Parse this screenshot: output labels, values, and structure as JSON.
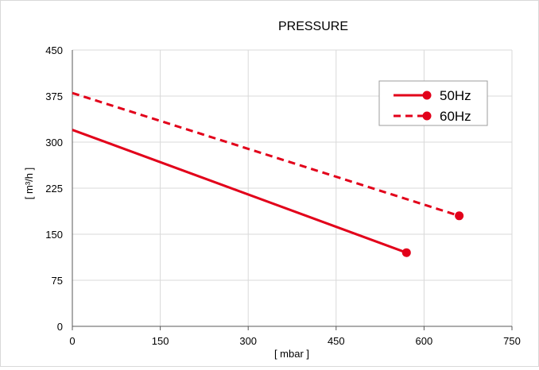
{
  "chart_data": {
    "type": "line",
    "title": "PRESSURE",
    "xlabel": "[ mbar ]",
    "ylabel": "[ m³/h ]",
    "xlim": [
      0,
      750
    ],
    "ylim": [
      0,
      450
    ],
    "xticks": [
      0,
      150,
      300,
      450,
      600,
      750
    ],
    "yticks": [
      0,
      75,
      150,
      225,
      300,
      375,
      450
    ],
    "grid": true,
    "legend_position": "top-right",
    "series": [
      {
        "name": "50Hz",
        "color": "#e2001a",
        "line_style": "solid",
        "x": [
          0,
          570
        ],
        "y": [
          320,
          120
        ],
        "end_marker": true
      },
      {
        "name": "60Hz",
        "color": "#e2001a",
        "line_style": "dashed",
        "x": [
          0,
          660
        ],
        "y": [
          380,
          180
        ],
        "end_marker": true
      }
    ]
  }
}
